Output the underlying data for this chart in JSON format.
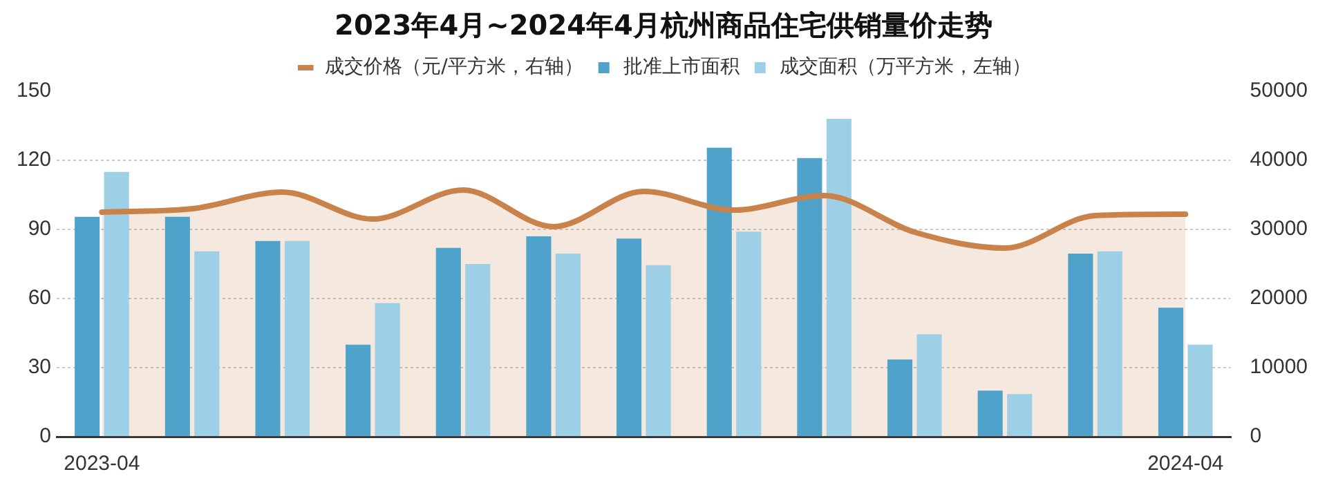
{
  "chart_data": {
    "type": "bar",
    "title": "2023年4月~2024年4月杭州商品住宅供销量价走势",
    "categories": [
      "2023-04",
      null,
      null,
      null,
      null,
      null,
      null,
      null,
      null,
      null,
      null,
      null,
      "2024-04"
    ],
    "series": [
      {
        "name": "批准上市面积",
        "color": "#4fa3cb",
        "values": [
          95.5,
          95.5,
          85,
          40,
          82,
          87,
          86,
          125.5,
          121,
          33.5,
          20,
          79.5,
          56
        ]
      },
      {
        "name": "成交面积（万平方米，左轴）",
        "color": "#9dcfe6",
        "values": [
          115,
          80.5,
          85,
          58,
          75,
          79.5,
          74.5,
          89,
          138,
          44.5,
          18.5,
          80.5,
          40
        ]
      },
      {
        "name": "成交价格（元/平方米，右轴）",
        "type": "area",
        "axis": "y2",
        "color": "#c8824a",
        "values": [
          32500,
          33000,
          35400,
          31500,
          35700,
          30400,
          35500,
          32800,
          34900,
          29600,
          27300,
          32000,
          32200
        ]
      }
    ],
    "ylim": [
      0,
      150
    ],
    "yticks": [
      0,
      30,
      60,
      90,
      120,
      150
    ],
    "y2lim": [
      0,
      50000
    ],
    "y2ticks": [
      0,
      10000,
      20000,
      30000,
      40000,
      50000
    ],
    "grid": "y",
    "legend": "top"
  }
}
